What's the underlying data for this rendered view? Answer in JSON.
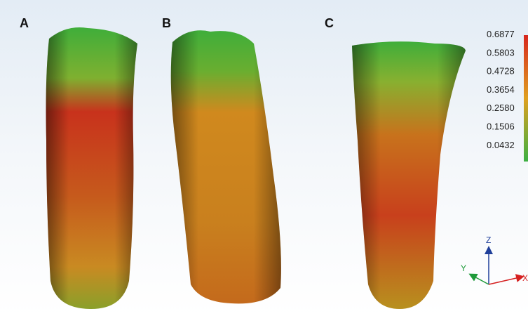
{
  "panels": [
    {
      "label": "A"
    },
    {
      "label": "B"
    },
    {
      "label": "C"
    }
  ],
  "colorbar": {
    "labels": [
      "0.6877",
      "0.5803",
      "0.4728",
      "0.3654",
      "0.2580",
      "0.1506",
      "0.0432"
    ]
  },
  "axes": {
    "z": "Z",
    "y": "Y",
    "x": "X"
  }
}
